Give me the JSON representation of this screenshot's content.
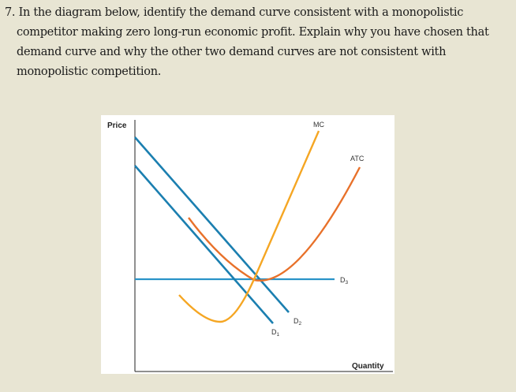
{
  "question": {
    "number": "7.",
    "lines": [
      "In the diagram below, identify the demand curve consistent with a monopolistic",
      "competitor making zero long-run economic profit. Explain why you have chosen that",
      "demand curve and why the other two demand  curves are not consistent with",
      "monopolistic competition."
    ]
  },
  "diagram": {
    "y_axis_label": "Price",
    "x_axis_label": "Quantity",
    "curves": {
      "mc": {
        "label": "MC",
        "color": "#f5a623"
      },
      "atc": {
        "label": "ATC",
        "color": "#e8712a"
      },
      "d1": {
        "label": "D",
        "sub": "1",
        "color": "#1b7fb0"
      },
      "d2": {
        "label": "D",
        "sub": "2",
        "color": "#1b7fb0"
      },
      "d3": {
        "label": "D",
        "sub": "3",
        "color": "#2a93c8"
      }
    }
  }
}
